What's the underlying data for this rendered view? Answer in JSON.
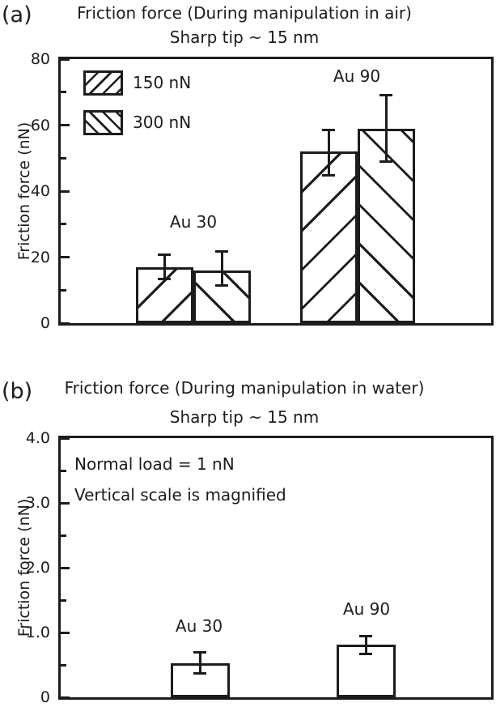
{
  "colors": {
    "ink": "#1c1c1c",
    "background": "#ffffff"
  },
  "panels": [
    {
      "corner_label": "(a)",
      "chart_data": {
        "type": "bar",
        "title": "Friction force (During manipulation in air)",
        "subtitle": "Sharp tip ~ 15 nm",
        "ylabel": "Friction force (nN)",
        "xlabel": "",
        "categories": [
          "Au 30",
          "Au 90"
        ],
        "series": [
          {
            "name": "150 nN",
            "hatch": "forward-diagonal",
            "values": [
              17,
              52
            ],
            "err_low": [
              13,
              44.5
            ],
            "err_high": [
              21,
              59
            ]
          },
          {
            "name": "300 nN",
            "hatch": "backward-diagonal",
            "values": [
              16,
              59
            ],
            "err_low": [
              11,
              48.5
            ],
            "err_high": [
              22,
              69.5
            ]
          }
        ],
        "ylim": [
          0,
          80
        ],
        "ytick_values": [
          0,
          20,
          40,
          60,
          80
        ],
        "ytick_labels": [
          "0",
          "20",
          "40",
          "60",
          "80"
        ],
        "minor_tick_step": 10,
        "bar_fill": "none (hatched, white)",
        "grid": false,
        "legend_position": "upper-left"
      }
    },
    {
      "corner_label": "(b)",
      "chart_data": {
        "type": "bar",
        "title": "Friction force (During manipulation in water)",
        "subtitle": "Sharp tip ~ 15 nm",
        "ylabel": "Friction force (nN)",
        "xlabel": "",
        "categories": [
          "Au 30",
          "Au 90"
        ],
        "series": [
          {
            "name": "",
            "hatch": "none",
            "values": [
              0.53,
              0.81
            ],
            "err_low": [
              0.35,
              0.65
            ],
            "err_high": [
              0.71,
              0.96
            ]
          }
        ],
        "ylim": [
          0,
          4.0
        ],
        "ytick_values": [
          0,
          1,
          2,
          3,
          4
        ],
        "ytick_labels": [
          "0",
          "1.0",
          "2.0",
          "3.0",
          "4.0"
        ],
        "minor_tick_step": 0.5,
        "annotations": [
          "Normal load = 1 nN",
          "Vertical scale is magnified"
        ],
        "bar_fill": "white",
        "grid": false,
        "legend_position": "none"
      }
    }
  ]
}
